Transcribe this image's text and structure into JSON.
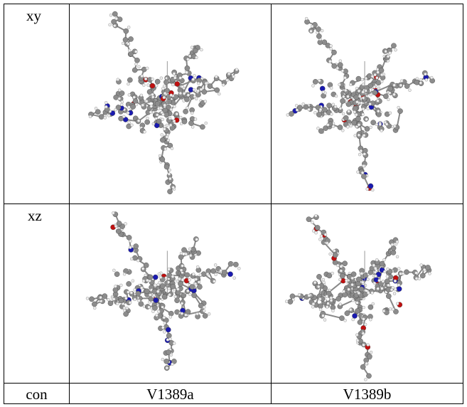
{
  "table": {
    "rows": [
      [
        "xy"
      ],
      [
        "xz"
      ],
      [
        "con",
        "V1389a",
        "V1389b"
      ]
    ]
  }
}
